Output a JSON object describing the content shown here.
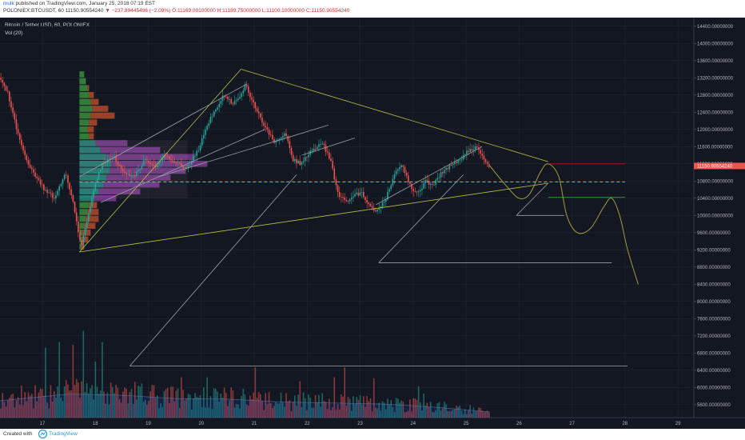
{
  "header": {
    "author": "mulk",
    "published_text": "published on TradingView.com, January 25, 2018 07:19 EST",
    "symbol": "POLONIEX:BTCUSDT, 60",
    "last": "11150.90554240",
    "change": "▼ −237.89445496 (−2.09%)",
    "ohlc": {
      "o": "O:11169.00100000",
      "h": "H:11189.75000000",
      "l": "L:11100.10000000",
      "c": "C:11150.90554240"
    }
  },
  "legend": {
    "title": "Bitcoin / Tether USD, 60, POLONIEX",
    "volume": "Vol (20)"
  },
  "footer": {
    "created": "Created with",
    "brand": "TradingView"
  },
  "colors": {
    "background": "#131722",
    "up": "#26a69a",
    "down": "#ef5350",
    "trend": "#b5c243",
    "resistance": "#b71c1c",
    "dashed": "#ff9800",
    "support": "#4caf50",
    "projection": "#9e9e3c",
    "profile_up": "#388e3c",
    "profile_down": "#b34a2a",
    "va_up": "#26857a",
    "va_down": "#7b3a8e"
  },
  "chart_data": {
    "type": "candlestick",
    "title": "Bitcoin / Tether USD, 60, POLONIEX",
    "ylim": [
      5300,
      14600
    ],
    "y_ticks": [
      14400,
      14000,
      13600,
      13200,
      12800,
      12400,
      12000,
      11600,
      11200,
      10800,
      10400,
      10000,
      9600,
      9200,
      8800,
      8400,
      8000,
      7600,
      7200,
      6800,
      6400,
      6000,
      5600
    ],
    "y_tick_labels": [
      "14400.00000000",
      "14000.00000000",
      "13600.00000000",
      "13200.00000000",
      "12800.00000000",
      "12400.00000000",
      "12000.00000000",
      "11600.00000000",
      "11200.00000000",
      "10800.00000000",
      "10400.00000000",
      "10000.00000000",
      "9600.00000000",
      "9200.00000000",
      "8800.00000000",
      "8400.00000000",
      "8000.00000000",
      "7600.00000000",
      "7200.00000000",
      "6800.00000000",
      "6400.00000000",
      "6000.00000000",
      "5600.00000000"
    ],
    "xlim": [
      16.2,
      29.3
    ],
    "x_ticks": [
      17,
      18,
      19,
      20,
      21,
      22,
      23,
      24,
      25,
      26,
      27,
      28,
      29
    ],
    "x_tick_labels": [
      "17",
      "18",
      "19",
      "20",
      "21",
      "22",
      "23",
      "24",
      "25",
      "26",
      "27",
      "28",
      "29"
    ],
    "price_path": [
      [
        16.2,
        13200
      ],
      [
        16.35,
        12900
      ],
      [
        16.55,
        11900
      ],
      [
        16.7,
        11300
      ],
      [
        16.9,
        10900
      ],
      [
        17.05,
        10600
      ],
      [
        17.25,
        10400
      ],
      [
        17.45,
        11000
      ],
      [
        17.6,
        10300
      ],
      [
        17.7,
        9600
      ],
      [
        17.75,
        9300
      ],
      [
        17.85,
        9800
      ],
      [
        18.0,
        10700
      ],
      [
        18.15,
        11200
      ],
      [
        18.35,
        11400
      ],
      [
        18.55,
        11000
      ],
      [
        18.75,
        10900
      ],
      [
        18.95,
        11300
      ],
      [
        19.15,
        11100
      ],
      [
        19.35,
        11400
      ],
      [
        19.55,
        11200
      ],
      [
        19.75,
        11100
      ],
      [
        19.95,
        11500
      ],
      [
        20.2,
        12300
      ],
      [
        20.45,
        12800
      ],
      [
        20.6,
        12600
      ],
      [
        20.75,
        12800
      ],
      [
        20.85,
        13050
      ],
      [
        21.0,
        12600
      ],
      [
        21.2,
        12100
      ],
      [
        21.4,
        11700
      ],
      [
        21.6,
        11900
      ],
      [
        21.75,
        11300
      ],
      [
        21.9,
        11200
      ],
      [
        22.1,
        11500
      ],
      [
        22.3,
        11700
      ],
      [
        22.45,
        11300
      ],
      [
        22.6,
        10500
      ],
      [
        22.75,
        10300
      ],
      [
        22.9,
        10500
      ],
      [
        23.05,
        10500
      ],
      [
        23.2,
        10200
      ],
      [
        23.35,
        10100
      ],
      [
        23.5,
        10400
      ],
      [
        23.65,
        10900
      ],
      [
        23.8,
        11200
      ],
      [
        23.95,
        10700
      ],
      [
        24.1,
        10500
      ],
      [
        24.25,
        10800
      ],
      [
        24.4,
        10700
      ],
      [
        24.55,
        11000
      ],
      [
        24.75,
        11200
      ],
      [
        24.9,
        11300
      ],
      [
        25.05,
        11500
      ],
      [
        25.2,
        11600
      ],
      [
        25.3,
        11400
      ],
      [
        25.45,
        11150
      ]
    ],
    "volume_ylim": [
      0,
      2000
    ],
    "volume_ma_path": [
      [
        16.2,
        300
      ],
      [
        17.5,
        420
      ],
      [
        18.5,
        400
      ],
      [
        19.5,
        340
      ],
      [
        20.5,
        330
      ],
      [
        21.5,
        280
      ],
      [
        22.5,
        260
      ],
      [
        23.5,
        240
      ],
      [
        24.5,
        180
      ],
      [
        25.45,
        100
      ]
    ],
    "volume_spikes": [
      [
        17.05,
        1250
      ],
      [
        17.3,
        1350
      ],
      [
        17.55,
        1300
      ],
      [
        17.75,
        1550
      ],
      [
        18.0,
        1000
      ],
      [
        18.1,
        1350
      ],
      [
        19.6,
        720
      ],
      [
        20.1,
        720
      ],
      [
        21.0,
        900
      ],
      [
        21.85,
        650
      ],
      [
        22.5,
        720
      ],
      [
        22.7,
        900
      ],
      [
        23.25,
        700
      ],
      [
        24.1,
        560
      ],
      [
        24.2,
        430
      ]
    ],
    "trendlines": [
      {
        "name": "triangle-top-line",
        "from": [
          20.75,
          13400
        ],
        "to": [
          26.55,
          11250
        ],
        "color": "#b5c243"
      },
      {
        "name": "triangle-bottom-line",
        "from": [
          17.7,
          9150
        ],
        "to": [
          26.55,
          10750
        ],
        "color": "#b5c243"
      },
      {
        "name": "triangle-left-line",
        "from": [
          17.7,
          9150
        ],
        "to": [
          20.75,
          13400
        ],
        "color": "#b5c243"
      },
      {
        "name": "channel-upper-line",
        "from": [
          17.7,
          10900
        ],
        "to": [
          20.85,
          13050
        ],
        "color": "#9aa0a6"
      },
      {
        "name": "channel-lower-line",
        "from": [
          18.1,
          10300
        ],
        "to": [
          21.2,
          12000
        ],
        "color": "#9aa0a6"
      },
      {
        "name": "channel-mid-line",
        "from": [
          19.2,
          10900
        ],
        "to": [
          22.4,
          12100
        ],
        "color": "#9aa0a6"
      },
      {
        "name": "channel2-upper-line",
        "from": [
          21.9,
          11400
        ],
        "to": [
          22.9,
          11800
        ],
        "color": "#9aa0a6"
      },
      {
        "name": "channel2-lower-line",
        "from": [
          23.3,
          10250
        ],
        "to": [
          25.3,
          11600
        ],
        "color": "#9aa0a6"
      },
      {
        "name": "measure-long-diag",
        "from": [
          18.65,
          6500
        ],
        "to": [
          21.8,
          10950
        ],
        "color": "#9aa0a6"
      },
      {
        "name": "measure-long-flat",
        "from": [
          18.65,
          6500
        ],
        "to": [
          28.05,
          6500
        ],
        "color": "#9aa0a6"
      },
      {
        "name": "measure-mid-diag",
        "from": [
          23.35,
          8900
        ],
        "to": [
          24.95,
          10950
        ],
        "color": "#9aa0a6"
      },
      {
        "name": "measure-mid-flat",
        "from": [
          23.35,
          8900
        ],
        "to": [
          27.75,
          8900
        ],
        "color": "#9aa0a6"
      },
      {
        "name": "measure-small-diag",
        "from": [
          25.95,
          10000
        ],
        "to": [
          26.55,
          10750
        ],
        "color": "#9aa0a6"
      },
      {
        "name": "measure-small-flat",
        "from": [
          25.95,
          10000
        ],
        "to": [
          26.85,
          10000
        ],
        "color": "#9aa0a6"
      },
      {
        "name": "resistance-line",
        "from": [
          26.55,
          11200
        ],
        "to": [
          28.0,
          11200
        ],
        "color": "#b71c1c"
      },
      {
        "name": "dashed-level-line",
        "from": [
          17.7,
          10780
        ],
        "to": [
          28.0,
          10780
        ],
        "color": "#ff9800",
        "dashed": true
      },
      {
        "name": "support-line",
        "from": [
          26.55,
          10420
        ],
        "to": [
          28.0,
          10420
        ],
        "color": "#4caf50"
      }
    ],
    "projection_path": [
      [
        25.45,
        11150
      ],
      [
        25.75,
        10700
      ],
      [
        26.0,
        10400
      ],
      [
        26.2,
        10500
      ],
      [
        26.4,
        11000
      ],
      [
        26.55,
        11200
      ],
      [
        26.75,
        10900
      ],
      [
        26.9,
        10000
      ],
      [
        27.1,
        9600
      ],
      [
        27.35,
        9700
      ],
      [
        27.6,
        10200
      ],
      [
        27.75,
        10400
      ],
      [
        27.9,
        10000
      ],
      [
        28.05,
        9200
      ],
      [
        28.25,
        8400
      ]
    ],
    "volume_profile": {
      "anchor_x": 17.7,
      "bins": [
        {
          "price": 13280,
          "up": 6,
          "down": 0
        },
        {
          "price": 13120,
          "up": 8,
          "down": 0
        },
        {
          "price": 12960,
          "up": 10,
          "down": 2
        },
        {
          "price": 12800,
          "up": 12,
          "down": 6
        },
        {
          "price": 12640,
          "up": 14,
          "down": 10
        },
        {
          "price": 12480,
          "up": 16,
          "down": 20
        },
        {
          "price": 12320,
          "up": 14,
          "down": 30
        },
        {
          "price": 12160,
          "up": 12,
          "down": 10
        },
        {
          "price": 12000,
          "up": 10,
          "down": 8
        },
        {
          "price": 11840,
          "up": 12,
          "down": 6
        },
        {
          "price": 11680,
          "up": 20,
          "down": 40
        },
        {
          "price": 11520,
          "up": 26,
          "down": 75
        },
        {
          "price": 11360,
          "up": 34,
          "down": 110
        },
        {
          "price": 11200,
          "up": 40,
          "down": 120
        },
        {
          "price": 11040,
          "up": 38,
          "down": 95
        },
        {
          "price": 10880,
          "up": 34,
          "down": 80
        },
        {
          "price": 10720,
          "up": 30,
          "down": 70
        },
        {
          "price": 10560,
          "up": 24,
          "down": 52
        },
        {
          "price": 10400,
          "up": 18,
          "down": 28
        },
        {
          "price": 10240,
          "up": 12,
          "down": 10
        },
        {
          "price": 10080,
          "up": 10,
          "down": 14
        },
        {
          "price": 9920,
          "up": 8,
          "down": 16
        },
        {
          "price": 9760,
          "up": 6,
          "down": 14
        },
        {
          "price": 9600,
          "up": 4,
          "down": 10
        },
        {
          "price": 9440,
          "up": 3,
          "down": 8
        },
        {
          "price": 9280,
          "up": 2,
          "down": 4
        }
      ],
      "value_area": [
        10400,
        11750
      ]
    }
  }
}
